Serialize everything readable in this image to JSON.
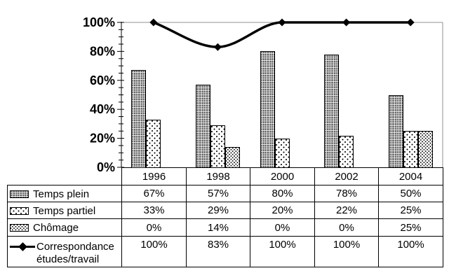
{
  "chart_data": {
    "type": "bar",
    "title": "",
    "xlabel": "",
    "ylabel": "",
    "categories": [
      "1996",
      "1998",
      "2000",
      "2002",
      "2004"
    ],
    "series": [
      {
        "name": "Temps plein",
        "kind": "bar",
        "pattern": "dense-dots",
        "values": [
          67,
          57,
          80,
          78,
          50
        ],
        "labels": [
          "67%",
          "57%",
          "80%",
          "78%",
          "50%"
        ]
      },
      {
        "name": "Temps partiel",
        "kind": "bar",
        "pattern": "diamond-dots",
        "values": [
          33,
          29,
          20,
          22,
          25
        ],
        "labels": [
          "33%",
          "29%",
          "20%",
          "22%",
          "25%"
        ]
      },
      {
        "name": "Chômage",
        "kind": "bar",
        "pattern": "diagonal-dots",
        "values": [
          0,
          14,
          0,
          0,
          25
        ],
        "labels": [
          "0%",
          "14%",
          "0%",
          "0%",
          "25%"
        ]
      },
      {
        "name": "Correspondance études/travail",
        "kind": "line",
        "marker": "diamond",
        "values": [
          100,
          83,
          100,
          100,
          100
        ],
        "labels": [
          "100%",
          "83%",
          "100%",
          "100%",
          "100%"
        ]
      }
    ],
    "ylim": [
      0,
      100
    ],
    "yticks": [
      {
        "value": 0,
        "label": "0%"
      },
      {
        "value": 20,
        "label": "20%"
      },
      {
        "value": 40,
        "label": "40%"
      },
      {
        "value": 60,
        "label": "60%"
      },
      {
        "value": 80,
        "label": "80%"
      },
      {
        "value": 100,
        "label": "100%"
      }
    ],
    "minor_tick_step": 5,
    "gridlines": [
      100
    ],
    "legend_position": "table-left-column",
    "line_smoothing": true
  },
  "colors": {
    "background": "#ffffff",
    "axis": "#000000",
    "gridline": "#909090",
    "plot_right_border": "#909090",
    "bar_border": "#000000",
    "line_series": "#000000",
    "table_border": "#000000",
    "text": "#000000"
  }
}
